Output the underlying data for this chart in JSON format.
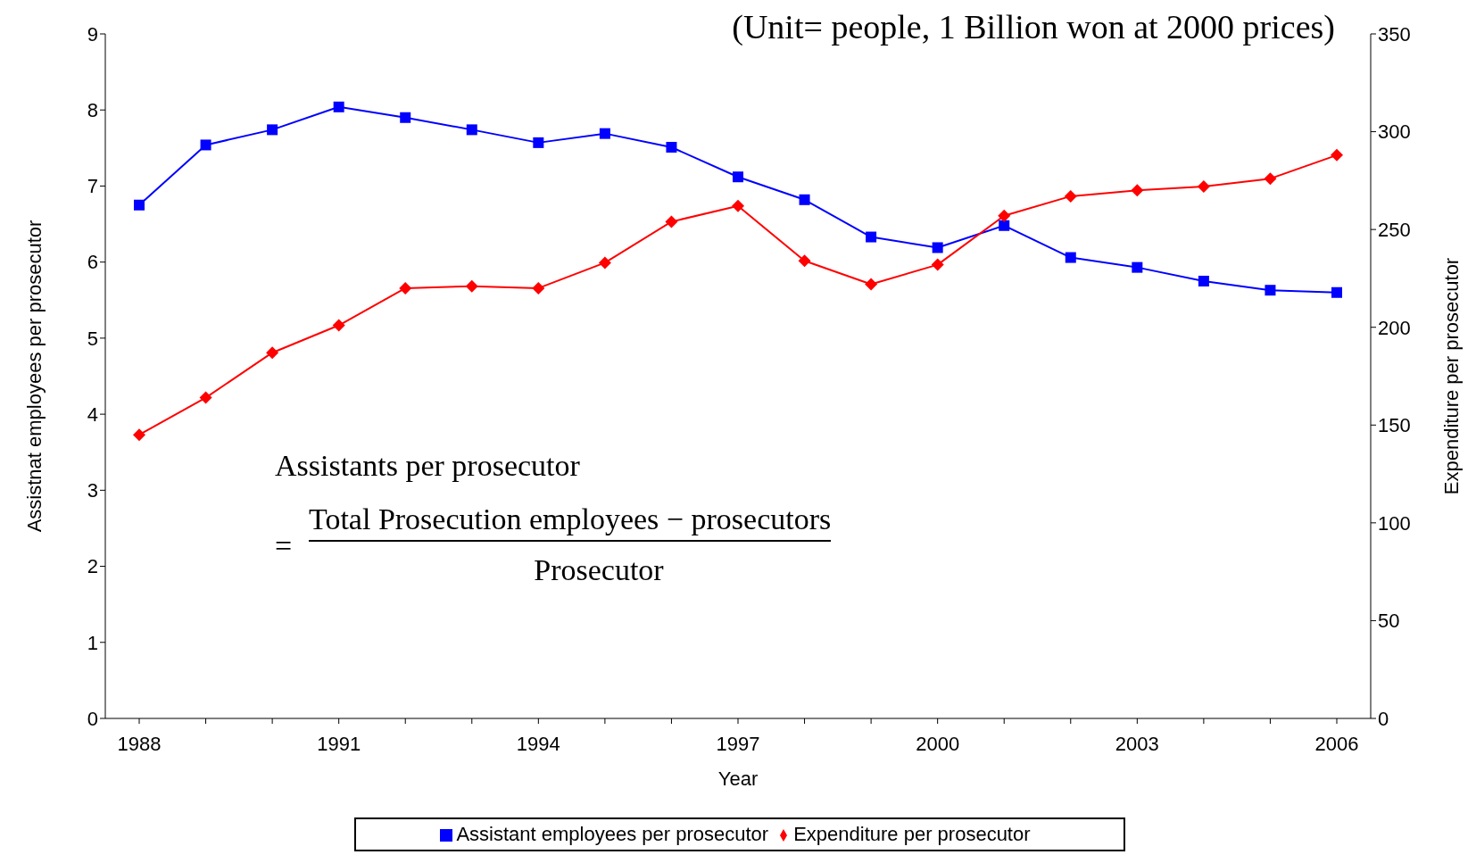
{
  "chart_data": {
    "type": "line",
    "xlabel": "Year",
    "ylabel": "Assistnat employees per prosecutor",
    "y2label": "Expenditure per prosecutor",
    "annotations": [
      "(Unit= people, 1 Billion won at 2000 prices)",
      "Assistants per prosecutor",
      "=",
      "Total Prosecution employees − prosecutors",
      "Prosecutor"
    ],
    "categories": [
      "1988",
      null,
      null,
      "1991",
      null,
      null,
      "1994",
      null,
      null,
      "1997",
      null,
      null,
      "2000",
      null,
      null,
      "2003",
      null,
      null,
      "2006"
    ],
    "series": [
      {
        "name": "Assistant employees per prosecutor",
        "color": "#0000ff",
        "marker": "square",
        "values": [
          6.75,
          7.54,
          7.74,
          8.04,
          7.9,
          7.74,
          7.57,
          7.69,
          7.51,
          7.12,
          6.82,
          6.33,
          6.19,
          6.48,
          6.06,
          5.93,
          5.75,
          5.63,
          5.6
        ]
      },
      {
        "name": "Expenditure per prosecutor",
        "color": "#ff0000",
        "marker": "diamond",
        "axis": "y2",
        "values": [
          145,
          164,
          187,
          201,
          220,
          221,
          220,
          233,
          254,
          262,
          234,
          222,
          232,
          257,
          267,
          270,
          272,
          276,
          288
        ]
      }
    ],
    "ylim": [
      0,
      9
    ],
    "yticks": [
      0,
      1,
      2,
      3,
      4,
      5,
      6,
      7,
      8,
      9
    ],
    "y2lim": [
      0,
      350
    ],
    "y2ticks": [
      0,
      50,
      100,
      150,
      200,
      250,
      300,
      350
    ],
    "legend": "bottom"
  }
}
